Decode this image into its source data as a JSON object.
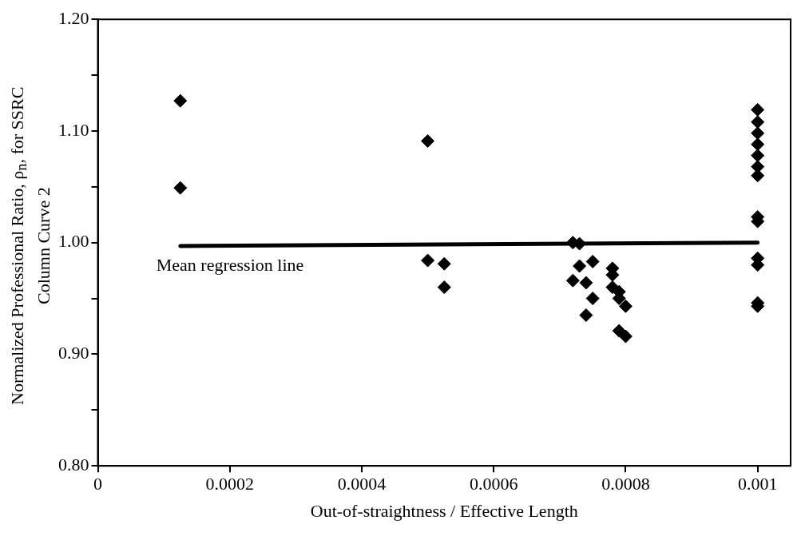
{
  "chart_data": {
    "type": "scatter",
    "xlabel": "Out-of-straightness / Effective Length",
    "ylabel": "Normalized Professional Ratio, ρ$_{n}$, for SSRC Column Curve 2",
    "xlim": [
      0,
      0.00105
    ],
    "xticks": [
      0,
      0.0002,
      0.0004,
      0.0006,
      0.0008,
      0.001
    ],
    "ylim": [
      0.8,
      1.2
    ],
    "yticks": [
      {
        "value": 0.8,
        "label": "0.80"
      },
      {
        "value": 0.85,
        "label": null
      },
      {
        "value": 0.9,
        "label": "0.90"
      },
      {
        "value": 0.95,
        "label": null
      },
      {
        "value": 1.0,
        "label": "1.00"
      },
      {
        "value": 1.05,
        "label": null
      },
      {
        "value": 1.1,
        "label": "1.10"
      },
      {
        "value": 1.15,
        "label": null
      },
      {
        "value": 1.2,
        "label": "1.20"
      }
    ],
    "grid": false,
    "legend": false,
    "annotations": [
      "Mean regression line"
    ],
    "series": [
      {
        "marker": "diamond",
        "color": "#000000",
        "x": [
          0.000125,
          0.000125,
          0.0005,
          0.0005,
          0.000525,
          0.000525,
          0.00072,
          0.00073,
          0.00073,
          0.00075,
          0.00072,
          0.00074,
          0.00075,
          0.00074,
          0.00078,
          0.00078,
          0.00078,
          0.00079,
          0.00079,
          0.0008,
          0.00079,
          0.0008,
          0.001,
          0.001,
          0.001,
          0.001,
          0.001,
          0.001,
          0.001,
          0.001,
          0.001,
          0.001,
          0.001,
          0.001,
          0.001
        ],
        "values": [
          1.127,
          1.049,
          1.091,
          0.984,
          0.981,
          0.96,
          1.0,
          0.999,
          0.979,
          0.983,
          0.966,
          0.964,
          0.95,
          0.935,
          0.977,
          0.971,
          0.96,
          0.956,
          0.95,
          0.943,
          0.921,
          0.916,
          1.119,
          1.108,
          1.098,
          1.088,
          1.078,
          1.068,
          1.06,
          1.023,
          1.019,
          0.986,
          0.98,
          0.946,
          0.943
        ]
      },
      {
        "type": "line",
        "color": "#000000",
        "x": [
          0.000125,
          0.001
        ],
        "values": [
          0.997,
          1.0
        ]
      }
    ]
  }
}
